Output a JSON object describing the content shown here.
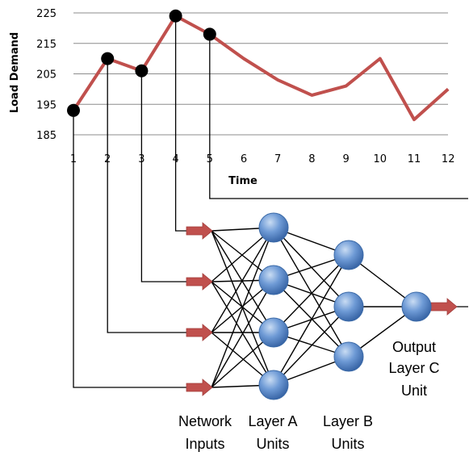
{
  "chart_data": {
    "type": "line",
    "xlabel": "Time",
    "ylabel": "Load Demand",
    "x": [
      1,
      2,
      3,
      4,
      5,
      6,
      7,
      8,
      9,
      10,
      11,
      12
    ],
    "values": [
      193,
      210,
      206,
      224,
      218,
      210,
      203,
      198,
      201,
      210,
      190,
      200
    ],
    "sampled_points": [
      1,
      2,
      3,
      4,
      5
    ],
    "ylim": [
      185,
      225
    ],
    "yticks": [
      185,
      195,
      205,
      215,
      225
    ],
    "grid": true,
    "line_color": "#c0504d",
    "marker_color": "#000000"
  },
  "network": {
    "arrow_color": "#c0504d",
    "node_color": "#4f81bd",
    "inputs_label": [
      "Network",
      "Inputs"
    ],
    "layer_a_label": [
      "Layer A",
      "Units"
    ],
    "layer_b_label": [
      "Layer B",
      "Units"
    ],
    "output_label": [
      "Output",
      "Layer C",
      "Unit"
    ],
    "layer_a_count": 4,
    "layer_b_count": 3,
    "output_count": 1
  }
}
